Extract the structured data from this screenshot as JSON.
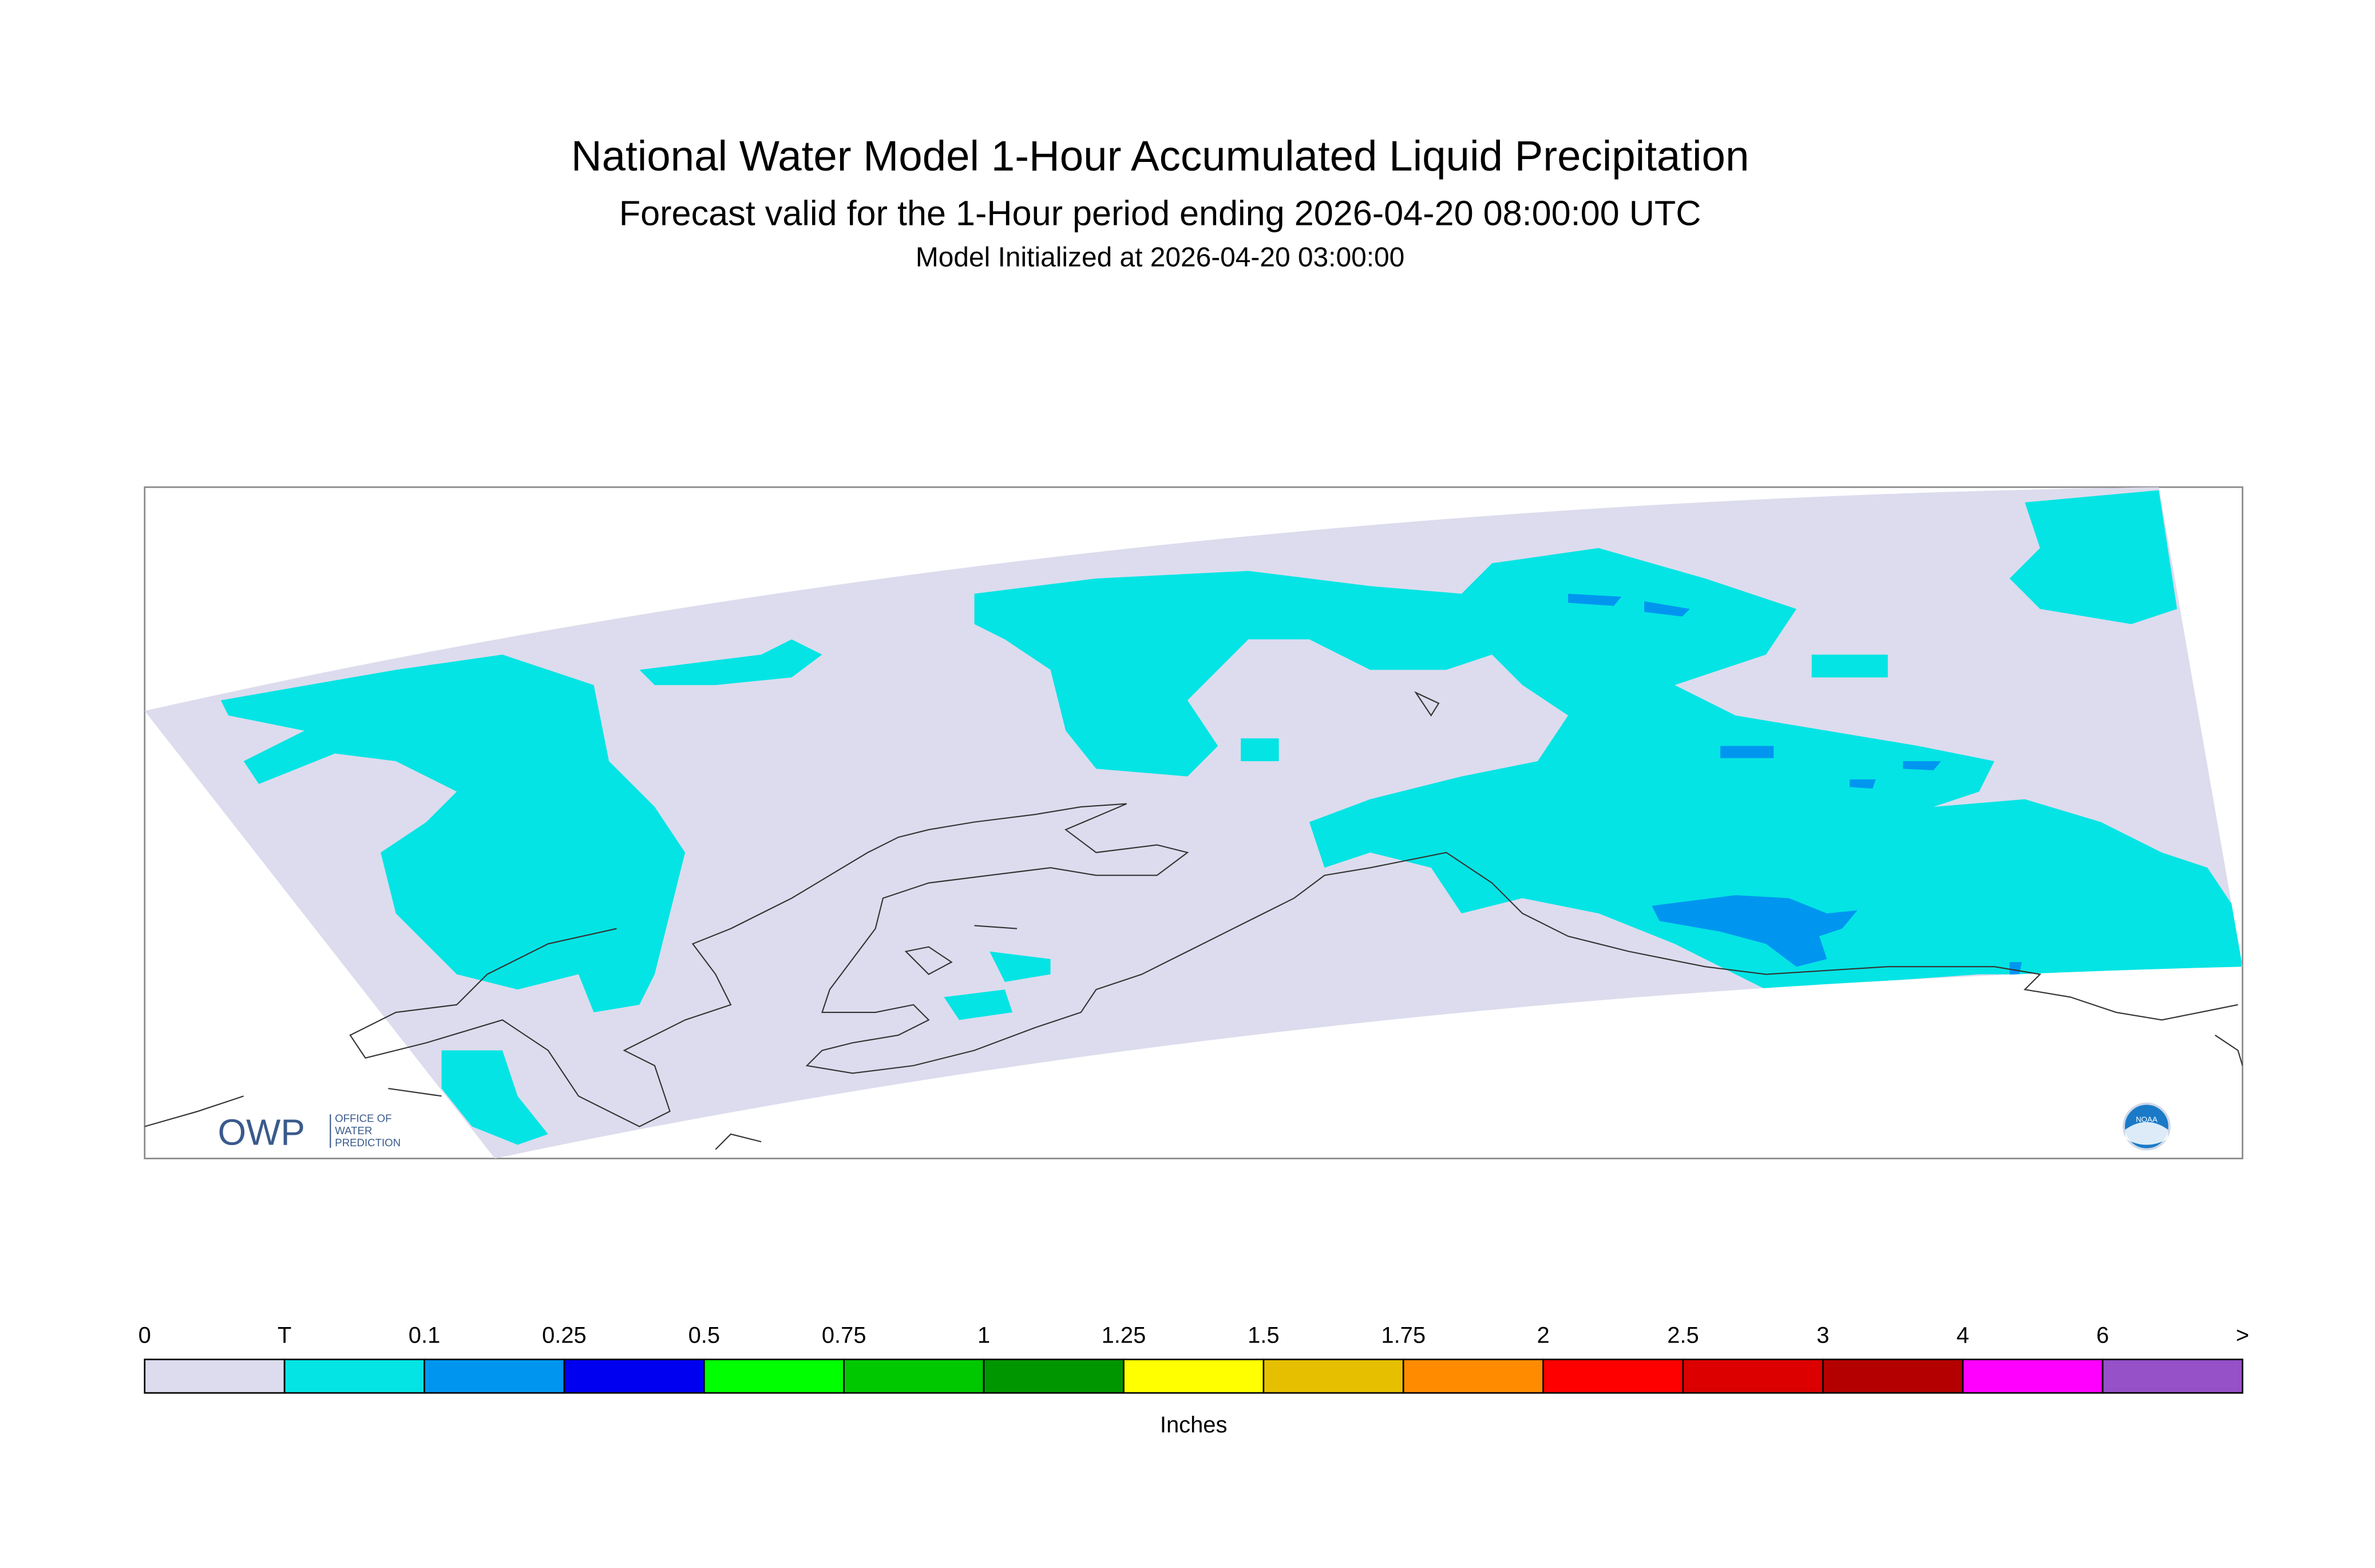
{
  "header": {
    "title": "National Water Model 1-Hour Accumulated Liquid Precipitation",
    "subtitle": "Forecast valid for the 1-Hour period ending 2026-04-20 08:00:00 UTC",
    "init": "Model Initialized at 2026-04-20 03:00:00"
  },
  "logos": {
    "owp": "OWP",
    "owp_lines": [
      "OFFICE OF",
      "WATER",
      "PREDICTION"
    ],
    "noaa": "NOAA"
  },
  "legend": {
    "labels": [
      "0",
      "T",
      "0.1",
      "0.25",
      "0.5",
      "0.75",
      "1",
      "1.25",
      "1.5",
      "1.75",
      "2",
      "2.5",
      "3",
      "4",
      "6",
      ">"
    ],
    "colors": [
      "#dcdcee",
      "#04e4e4",
      "#0096f0",
      "#0000f0",
      "#00ff00",
      "#00c800",
      "#009600",
      "#ffff00",
      "#e6c000",
      "#ff8c00",
      "#ff0000",
      "#dc0000",
      "#b40000",
      "#ff00ff",
      "#9650c8"
    ],
    "unit": "Inches"
  }
}
